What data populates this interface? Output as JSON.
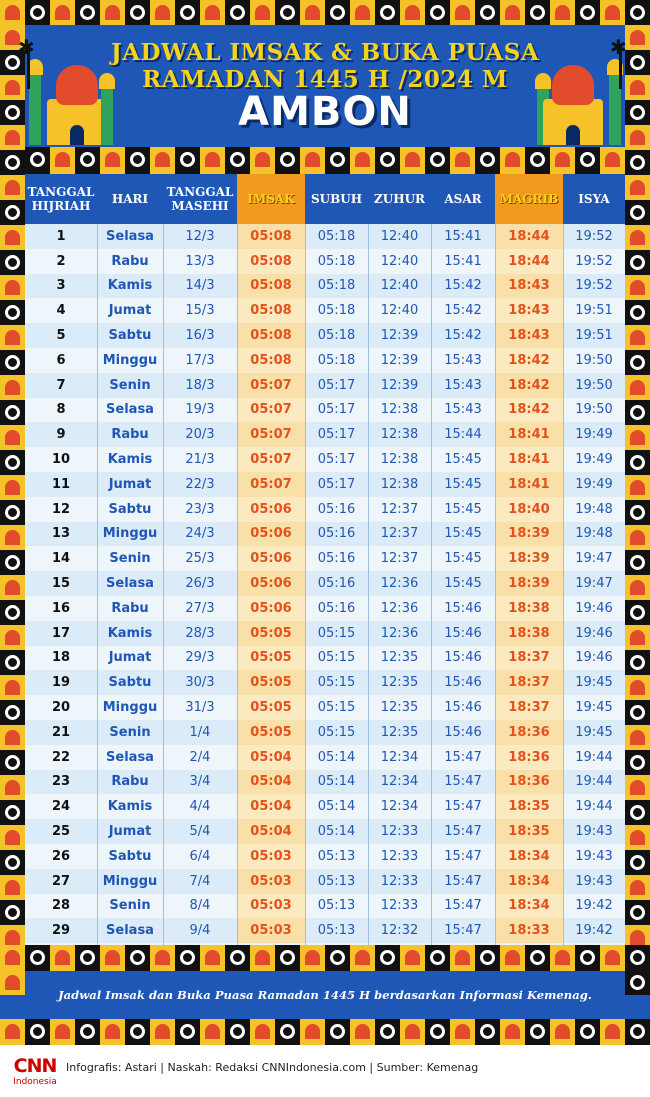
{
  "header": {
    "title_line1": "JADWAL IMSAK & BUKA PUASA",
    "title_line2": "RAMADAN 1445 H /2024 M",
    "city": "AMBON"
  },
  "table": {
    "columns": [
      {
        "key": "hijri",
        "label": "TANGGAL HIJRIAH"
      },
      {
        "key": "hari",
        "label": "HARI"
      },
      {
        "key": "masehi",
        "label": "TANGGAL MASEHI"
      },
      {
        "key": "imsak",
        "label": "IMSAK"
      },
      {
        "key": "subuh",
        "label": "SUBUH"
      },
      {
        "key": "zuhur",
        "label": "ZUHUR"
      },
      {
        "key": "asar",
        "label": "ASAR"
      },
      {
        "key": "magrib",
        "label": "MAGRIB"
      },
      {
        "key": "isya",
        "label": "ISYA"
      }
    ],
    "rows": [
      [
        "1",
        "Selasa",
        "12/3",
        "05:08",
        "05:18",
        "12:40",
        "15:41",
        "18:44",
        "19:52"
      ],
      [
        "2",
        "Rabu",
        "13/3",
        "05:08",
        "05:18",
        "12:40",
        "15:41",
        "18:44",
        "19:52"
      ],
      [
        "3",
        "Kamis",
        "14/3",
        "05:08",
        "05:18",
        "12:40",
        "15:42",
        "18:43",
        "19:52"
      ],
      [
        "4",
        "Jumat",
        "15/3",
        "05:08",
        "05:18",
        "12:40",
        "15:42",
        "18:43",
        "19:51"
      ],
      [
        "5",
        "Sabtu",
        "16/3",
        "05:08",
        "05:18",
        "12:39",
        "15:42",
        "18:43",
        "19:51"
      ],
      [
        "6",
        "Minggu",
        "17/3",
        "05:08",
        "05:18",
        "12:39",
        "15:43",
        "18:42",
        "19:50"
      ],
      [
        "7",
        "Senin",
        "18/3",
        "05:07",
        "05:17",
        "12:39",
        "15:43",
        "18:42",
        "19:50"
      ],
      [
        "8",
        "Selasa",
        "19/3",
        "05:07",
        "05:17",
        "12:38",
        "15:43",
        "18:42",
        "19:50"
      ],
      [
        "9",
        "Rabu",
        "20/3",
        "05:07",
        "05:17",
        "12:38",
        "15:44",
        "18:41",
        "19:49"
      ],
      [
        "10",
        "Kamis",
        "21/3",
        "05:07",
        "05:17",
        "12:38",
        "15:45",
        "18:41",
        "19:49"
      ],
      [
        "11",
        "Jumat",
        "22/3",
        "05:07",
        "05:17",
        "12:38",
        "15:45",
        "18:41",
        "19:49"
      ],
      [
        "12",
        "Sabtu",
        "23/3",
        "05:06",
        "05:16",
        "12:37",
        "15:45",
        "18:40",
        "19:48"
      ],
      [
        "13",
        "Minggu",
        "24/3",
        "05:06",
        "05:16",
        "12:37",
        "15:45",
        "18:39",
        "19:48"
      ],
      [
        "14",
        "Senin",
        "25/3",
        "05:06",
        "05:16",
        "12:37",
        "15:45",
        "18:39",
        "19:47"
      ],
      [
        "15",
        "Selasa",
        "26/3",
        "05:06",
        "05:16",
        "12:36",
        "15:45",
        "18:39",
        "19:47"
      ],
      [
        "16",
        "Rabu",
        "27/3",
        "05:06",
        "05:16",
        "12:36",
        "15:46",
        "18:38",
        "19:46"
      ],
      [
        "17",
        "Kamis",
        "28/3",
        "05:05",
        "05:15",
        "12:36",
        "15:46",
        "18:38",
        "19:46"
      ],
      [
        "18",
        "Jumat",
        "29/3",
        "05:05",
        "05:15",
        "12:35",
        "15:46",
        "18:37",
        "19:46"
      ],
      [
        "19",
        "Sabtu",
        "30/3",
        "05:05",
        "05:15",
        "12:35",
        "15:46",
        "18:37",
        "19:45"
      ],
      [
        "20",
        "Minggu",
        "31/3",
        "05:05",
        "05:15",
        "12:35",
        "15:46",
        "18:37",
        "19:45"
      ],
      [
        "21",
        "Senin",
        "1/4",
        "05:05",
        "05:15",
        "12:35",
        "15:46",
        "18:36",
        "19:45"
      ],
      [
        "22",
        "Selasa",
        "2/4",
        "05:04",
        "05:14",
        "12:34",
        "15:47",
        "18:36",
        "19:44"
      ],
      [
        "23",
        "Rabu",
        "3/4",
        "05:04",
        "05:14",
        "12:34",
        "15:47",
        "18:36",
        "19:44"
      ],
      [
        "24",
        "Kamis",
        "4/4",
        "05:04",
        "05:14",
        "12:34",
        "15:47",
        "18:35",
        "19:44"
      ],
      [
        "25",
        "Jumat",
        "5/4",
        "05:04",
        "05:14",
        "12:33",
        "15:47",
        "18:35",
        "19:43"
      ],
      [
        "26",
        "Sabtu",
        "6/4",
        "05:03",
        "05:13",
        "12:33",
        "15:47",
        "18:34",
        "19:43"
      ],
      [
        "27",
        "Minggu",
        "7/4",
        "05:03",
        "05:13",
        "12:33",
        "15:47",
        "18:34",
        "19:43"
      ],
      [
        "28",
        "Senin",
        "8/4",
        "05:03",
        "05:13",
        "12:33",
        "15:47",
        "18:34",
        "19:42"
      ],
      [
        "29",
        "Selasa",
        "9/4",
        "05:03",
        "05:13",
        "12:32",
        "15:47",
        "18:33",
        "19:42"
      ]
    ]
  },
  "footnote": "Jadwal Imsak dan Buka Puasa Ramadan 1445 H berdasarkan Informasi Kemenag.",
  "credits": {
    "logo_main": "CNN",
    "logo_sub": "Indonesia",
    "text": "Infografis: Astari | Naskah: Redaksi CNNIndonesia.com | Sumber: Kemenag"
  },
  "colors": {
    "primary_blue": "#1f57b7",
    "accent_orange": "#f29a1f",
    "title_yellow": "#f5d21e",
    "time_highlight": "#e4511c"
  }
}
